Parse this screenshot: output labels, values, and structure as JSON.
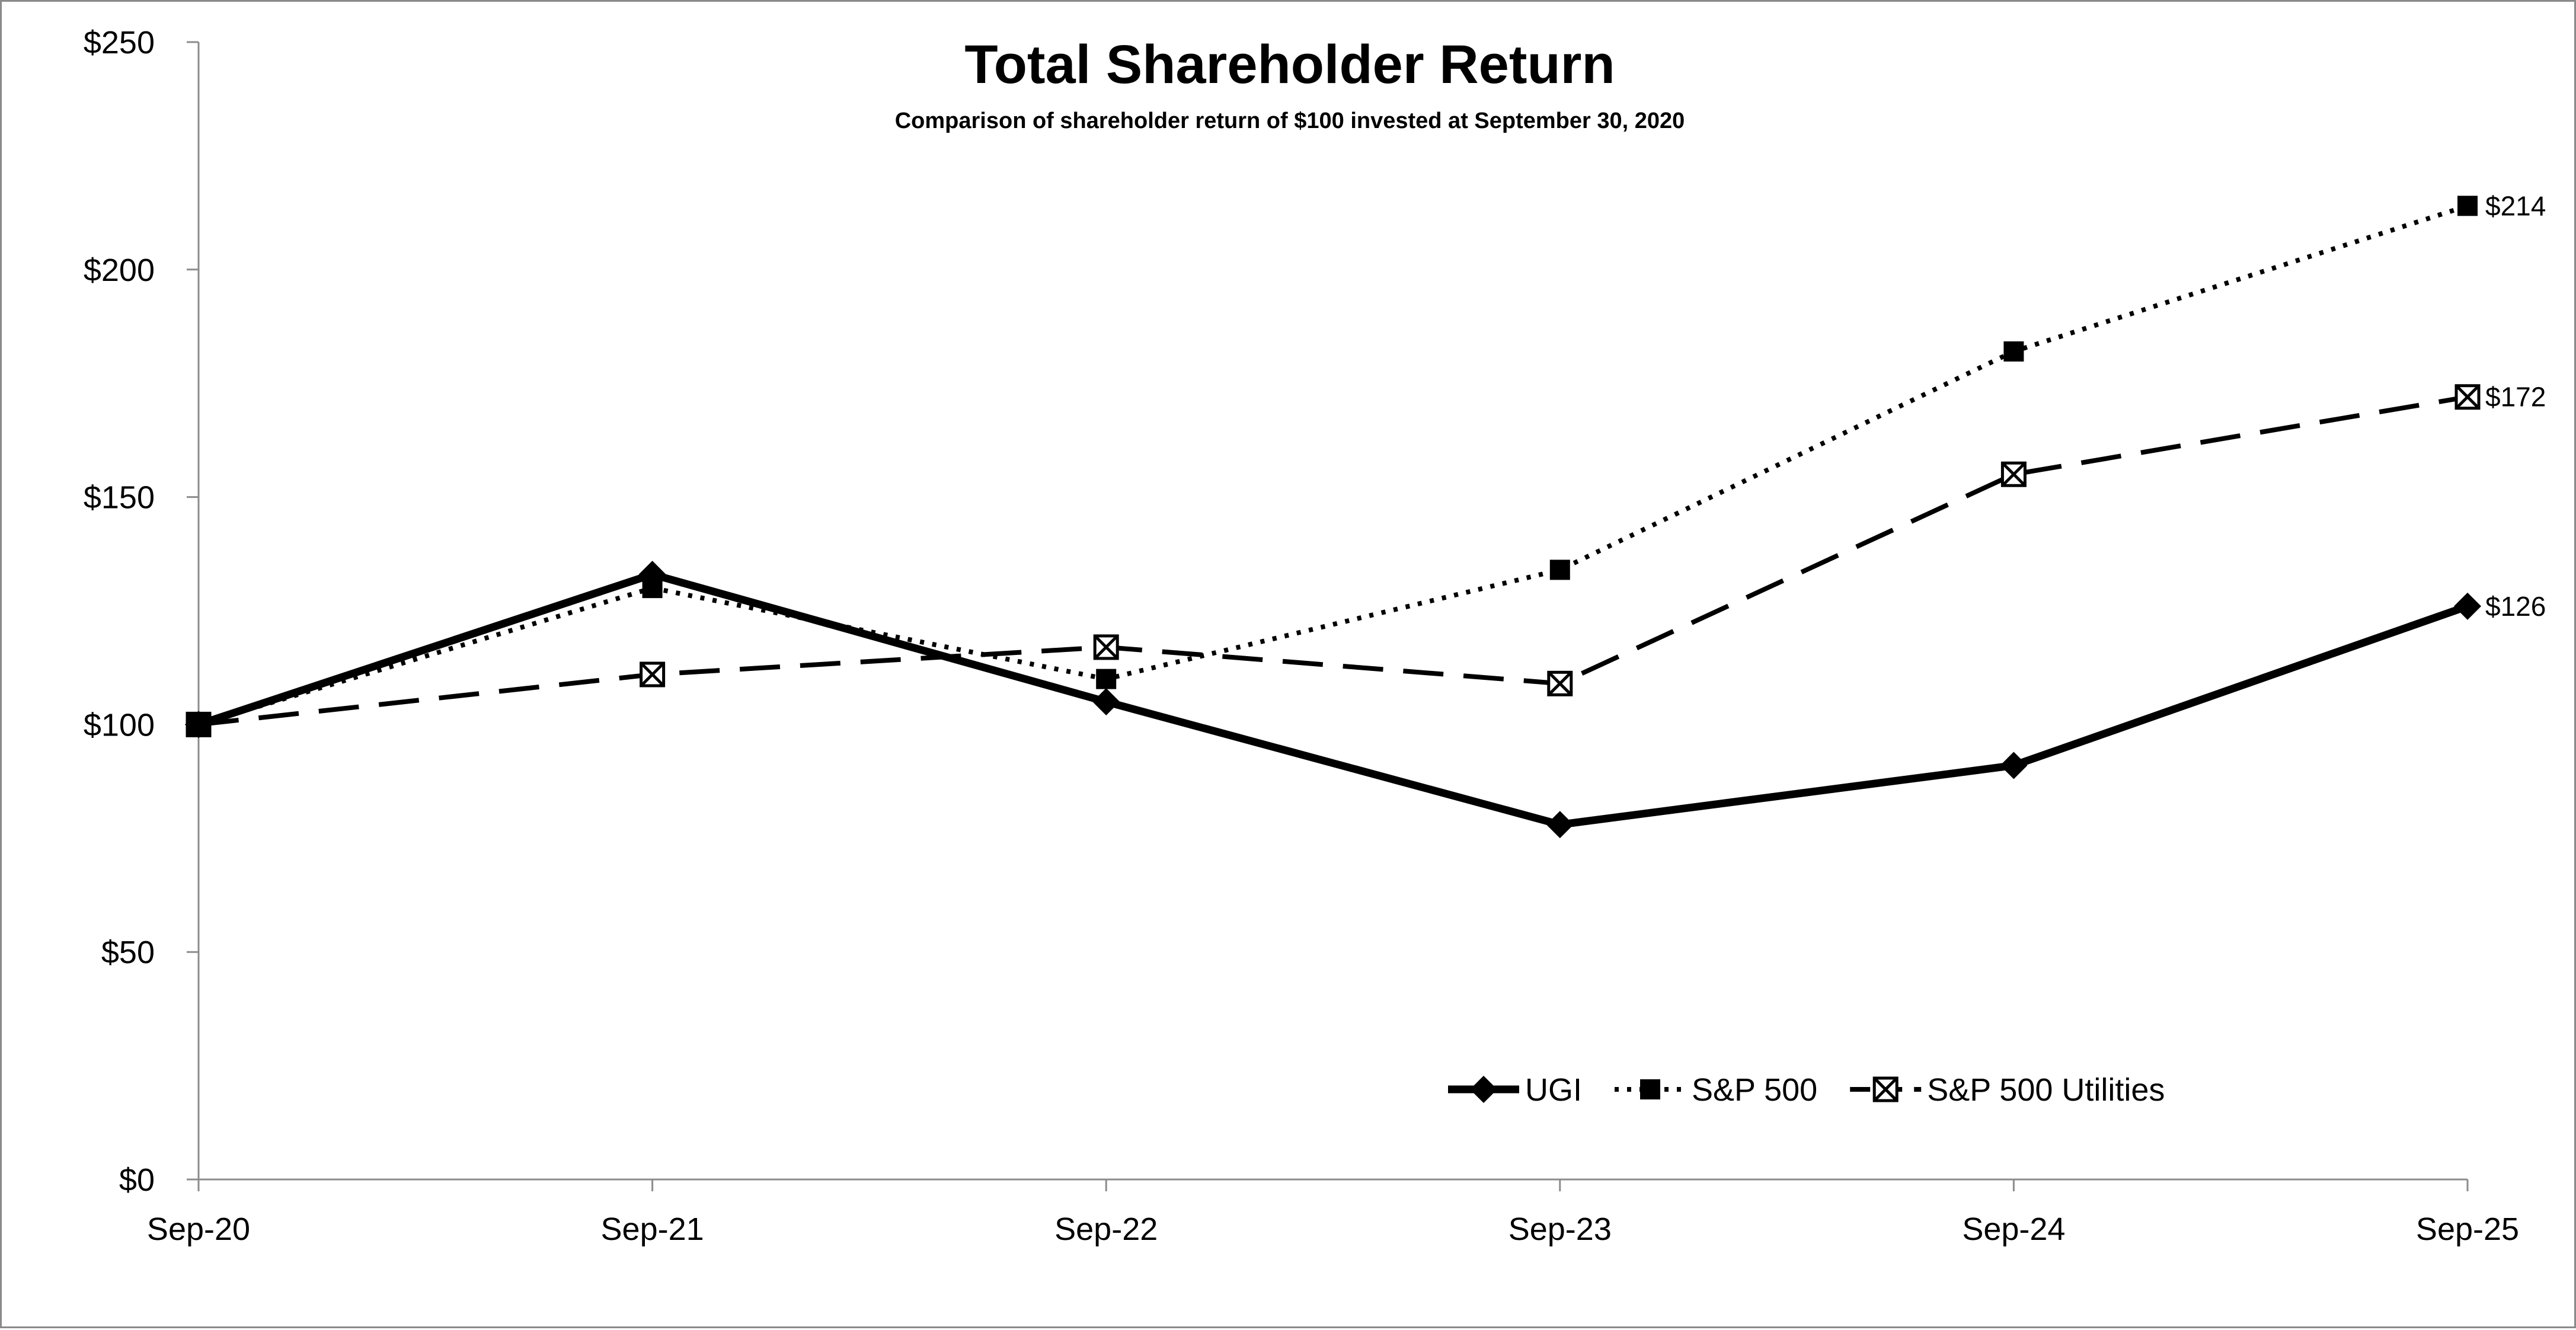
{
  "chart_data": {
    "type": "line",
    "title": "Total Shareholder Return",
    "subtitle": "Comparison of shareholder return of $100 invested at September 30, 2020",
    "xlabel": "",
    "ylabel": "",
    "categories": [
      "Sep-20",
      "Sep-21",
      "Sep-22",
      "Sep-23",
      "Sep-24",
      "Sep-25"
    ],
    "ylim": [
      0,
      250
    ],
    "yticks": [
      0,
      50,
      100,
      150,
      200,
      250
    ],
    "ytick_labels": [
      "$0",
      "$50",
      "$100",
      "$150",
      "$200",
      "$250"
    ],
    "grid": false,
    "legend_position": "bottom-right",
    "series": [
      {
        "name": "UGI",
        "style": "solid",
        "marker": "diamond",
        "values": [
          100,
          133,
          105,
          78,
          91,
          126
        ],
        "end_label": "$126"
      },
      {
        "name": "S&P 500",
        "style": "dotted",
        "marker": "square",
        "values": [
          100,
          130,
          110,
          134,
          182,
          214
        ],
        "end_label": "$214"
      },
      {
        "name": "S&P 500 Utilities",
        "style": "dashed",
        "marker": "boxed-x",
        "values": [
          100,
          111,
          117,
          109,
          155,
          172
        ],
        "end_label": "$172"
      }
    ],
    "colors": {
      "line": "#000000",
      "axis": "#8c8c8c",
      "background": "#ffffff"
    }
  }
}
